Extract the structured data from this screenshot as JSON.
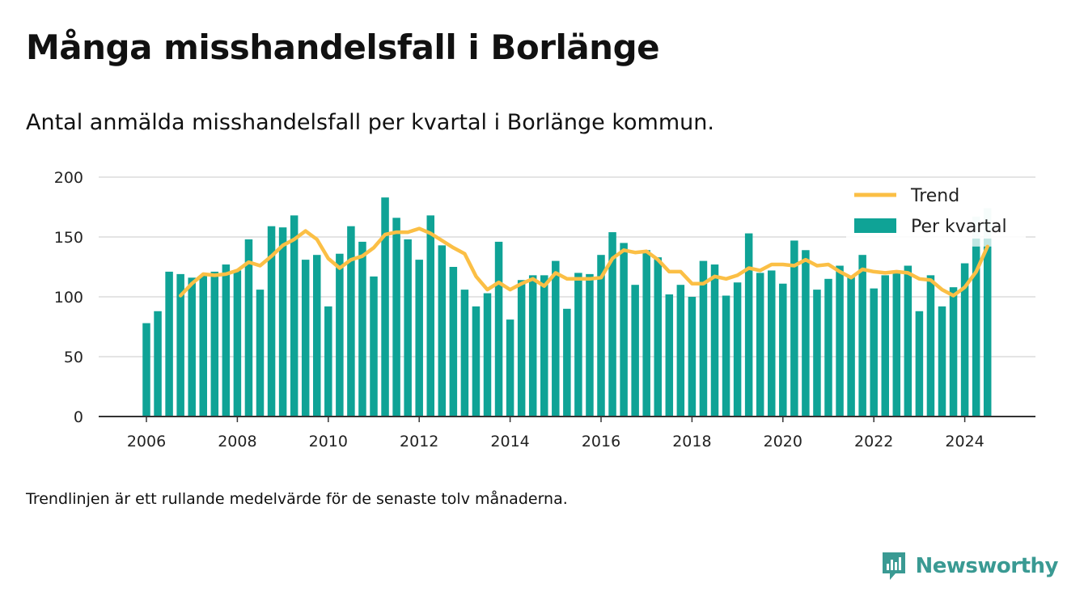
{
  "title": "Många misshandelsfall i Borlänge",
  "subtitle": "Antal anmälda misshandelsfall per kvartal i Borlänge kommun.",
  "footnote": "Trendlinjen är ett rullande medelvärde för de senaste tolv månaderna.",
  "brand": "Newsworthy",
  "chart_data": {
    "type": "bar",
    "x_start": "2006 Q1",
    "ylim": [
      0,
      200
    ],
    "yticks": [
      0,
      50,
      100,
      150,
      200
    ],
    "xticks": [
      "2006",
      "2008",
      "2010",
      "2012",
      "2014",
      "2016",
      "2018",
      "2020",
      "2022",
      "2024"
    ],
    "grid": true,
    "legend_position": "top-right",
    "colors": {
      "bars": "#0fa396",
      "trend": "#fbbf45",
      "highlight": "#bfe6e2"
    },
    "series": [
      {
        "name": "Per kvartal",
        "type": "bar",
        "values": [
          78,
          88,
          121,
          119,
          116,
          118,
          121,
          127,
          122,
          148,
          106,
          159,
          158,
          168,
          131,
          135,
          92,
          136,
          159,
          146,
          117,
          183,
          166,
          148,
          131,
          168,
          143,
          125,
          106,
          92,
          103,
          146,
          81,
          114,
          118,
          118,
          130,
          90,
          120,
          119,
          135,
          154,
          145,
          110,
          139,
          133,
          102,
          110,
          100,
          130,
          127,
          101,
          112,
          153,
          120,
          122,
          111,
          147,
          139,
          106,
          115,
          126,
          117,
          135,
          107,
          118,
          122,
          126,
          88,
          118,
          92,
          108,
          128,
          142,
          142
        ],
        "highlight_values": [
          null,
          null,
          null,
          null,
          null,
          null,
          null,
          null,
          null,
          null,
          null,
          null,
          null,
          null,
          null,
          null,
          null,
          null,
          null,
          null,
          null,
          null,
          null,
          null,
          null,
          null,
          null,
          null,
          null,
          null,
          null,
          null,
          null,
          null,
          null,
          null,
          null,
          null,
          null,
          null,
          null,
          null,
          null,
          null,
          null,
          null,
          null,
          null,
          null,
          null,
          null,
          null,
          null,
          null,
          null,
          null,
          null,
          null,
          null,
          null,
          null,
          null,
          null,
          null,
          null,
          null,
          null,
          null,
          null,
          null,
          null,
          null,
          null,
          167,
          174
        ]
      },
      {
        "name": "Trend",
        "type": "line",
        "values": [
          null,
          null,
          null,
          101,
          111,
          119,
          118,
          119,
          122,
          129,
          126,
          134,
          143,
          148,
          155,
          148,
          132,
          124,
          131,
          134,
          141,
          152,
          154,
          154,
          157,
          153,
          147,
          141,
          136,
          117,
          106,
          112,
          106,
          111,
          115,
          109,
          120,
          115,
          115,
          115,
          116,
          132,
          139,
          137,
          138,
          131,
          121,
          121,
          111,
          111,
          117,
          115,
          118,
          124,
          122,
          127,
          127,
          126,
          131,
          126,
          127,
          121,
          116,
          123,
          121,
          120,
          121,
          120,
          115,
          114,
          106,
          101,
          108,
          121,
          142
        ]
      }
    ]
  }
}
